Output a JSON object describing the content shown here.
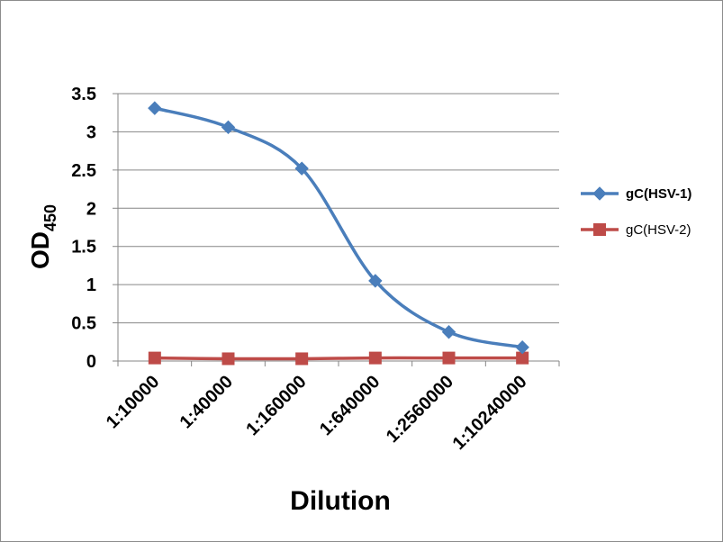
{
  "chart_data": {
    "type": "line",
    "xlabel": "Dilution",
    "ylabel": {
      "main": "OD",
      "subscript": "450"
    },
    "categories": [
      "1:10000",
      "1:40000",
      "1:160000",
      "1:640000",
      "1:2560000",
      "1:10240000"
    ],
    "ylim": [
      0,
      3.5
    ],
    "yticks": [
      "0",
      "0.5",
      "1",
      "1.5",
      "2",
      "2.5",
      "3",
      "3.5"
    ],
    "grid": "horizontal",
    "legend_position": "right",
    "series": [
      {
        "name": "gC(HSV-1)",
        "values": [
          3.31,
          3.06,
          2.52,
          1.05,
          0.38,
          0.18
        ],
        "color": "#4a7ebb",
        "marker": "diamond",
        "smooth": true
      },
      {
        "name": "gC(HSV-2)",
        "values": [
          0.04,
          0.03,
          0.03,
          0.04,
          0.04,
          0.04
        ],
        "color": "#be4b48",
        "marker": "square",
        "smooth": true
      }
    ]
  }
}
